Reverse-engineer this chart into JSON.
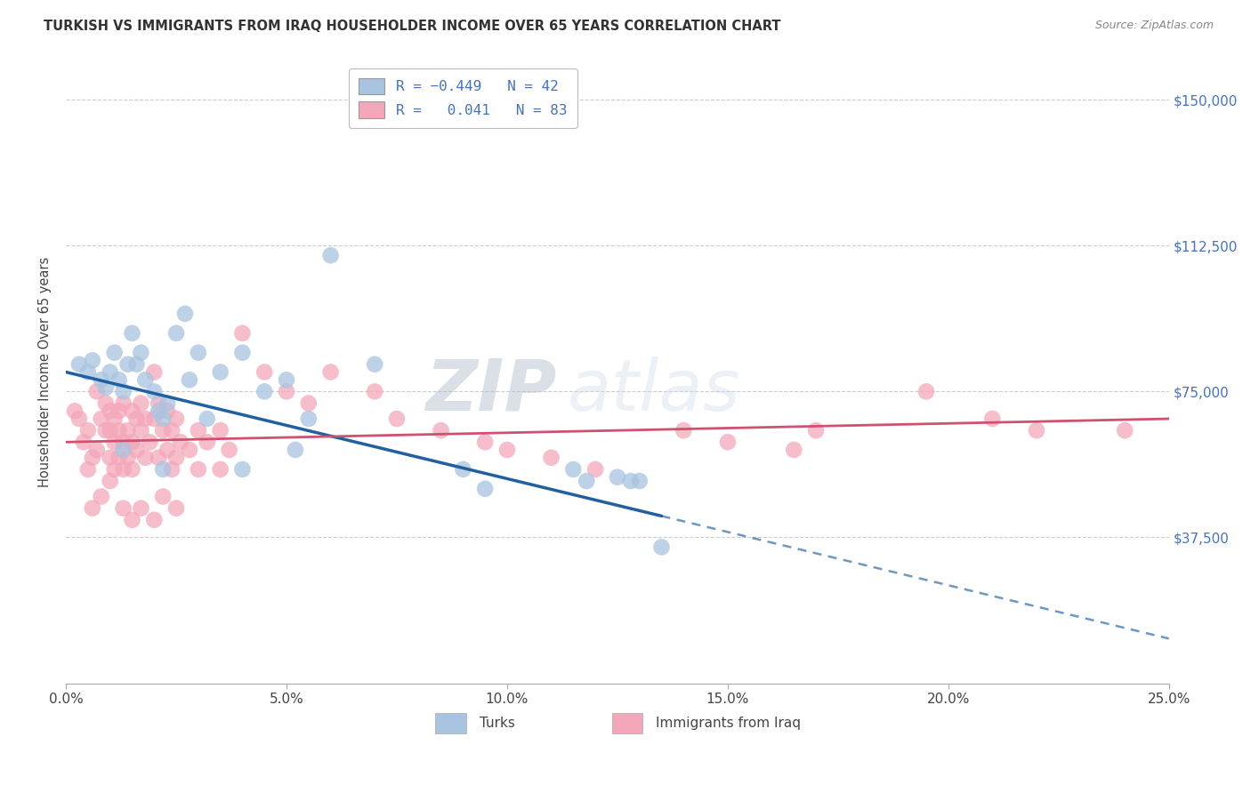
{
  "title": "TURKISH VS IMMIGRANTS FROM IRAQ HOUSEHOLDER INCOME OVER 65 YEARS CORRELATION CHART",
  "source": "Source: ZipAtlas.com",
  "ylabel": "Householder Income Over 65 years",
  "xlabel_ticks": [
    "0.0%",
    "5.0%",
    "10.0%",
    "15.0%",
    "20.0%",
    "25.0%"
  ],
  "xlabel_vals": [
    0.0,
    5.0,
    10.0,
    15.0,
    20.0,
    25.0
  ],
  "ytick_vals": [
    0,
    37500,
    75000,
    112500,
    150000
  ],
  "ytick_labels": [
    "",
    "$37,500",
    "$75,000",
    "$112,500",
    "$150,000"
  ],
  "xmin": 0.0,
  "xmax": 25.0,
  "ymin": 0,
  "ymax": 160000,
  "blue_R": -0.449,
  "blue_N": 42,
  "pink_R": 0.041,
  "pink_N": 83,
  "blue_color": "#a8c4e0",
  "pink_color": "#f4a7b9",
  "blue_line_color": "#2060a0",
  "pink_line_color": "#d05070",
  "legend_label1": "Turks",
  "legend_label2": "Immigrants from Iraq",
  "watermark_zip": "ZIP",
  "watermark_atlas": "atlas",
  "blue_solid_end": 13.5,
  "blue_x": [
    0.3,
    0.5,
    0.6,
    0.8,
    0.9,
    1.0,
    1.1,
    1.2,
    1.3,
    1.4,
    1.5,
    1.6,
    1.7,
    1.8,
    2.0,
    2.1,
    2.2,
    2.3,
    2.5,
    2.7,
    2.8,
    3.0,
    3.5,
    4.0,
    4.5,
    5.0,
    5.5,
    7.0,
    9.5,
    11.5,
    12.5,
    13.0,
    1.3,
    2.2,
    3.2,
    4.0,
    5.2,
    6.0,
    9.0,
    11.8,
    12.8,
    13.5
  ],
  "blue_y": [
    82000,
    80000,
    83000,
    78000,
    76000,
    80000,
    85000,
    78000,
    75000,
    82000,
    90000,
    82000,
    85000,
    78000,
    75000,
    70000,
    68000,
    72000,
    90000,
    95000,
    78000,
    85000,
    80000,
    85000,
    75000,
    78000,
    68000,
    82000,
    50000,
    55000,
    53000,
    52000,
    60000,
    55000,
    68000,
    55000,
    60000,
    110000,
    55000,
    52000,
    52000,
    35000
  ],
  "pink_x": [
    0.2,
    0.3,
    0.4,
    0.5,
    0.5,
    0.6,
    0.7,
    0.7,
    0.8,
    0.9,
    0.9,
    1.0,
    1.0,
    1.0,
    1.0,
    1.1,
    1.1,
    1.1,
    1.2,
    1.2,
    1.2,
    1.3,
    1.3,
    1.3,
    1.4,
    1.4,
    1.5,
    1.5,
    1.5,
    1.6,
    1.6,
    1.7,
    1.7,
    1.8,
    1.8,
    1.9,
    2.0,
    2.0,
    2.1,
    2.1,
    2.2,
    2.3,
    2.3,
    2.4,
    2.4,
    2.5,
    2.5,
    2.6,
    2.8,
    3.0,
    3.0,
    3.2,
    3.5,
    3.5,
    3.7,
    4.0,
    4.5,
    5.0,
    5.5,
    6.0,
    7.0,
    7.5,
    8.5,
    9.5,
    10.0,
    11.0,
    12.0,
    14.0,
    15.0,
    16.5,
    17.0,
    19.5,
    21.0,
    22.0,
    24.0,
    0.6,
    0.8,
    1.3,
    1.5,
    1.7,
    2.0,
    2.2,
    2.5
  ],
  "pink_y": [
    70000,
    68000,
    62000,
    65000,
    55000,
    58000,
    75000,
    60000,
    68000,
    65000,
    72000,
    70000,
    65000,
    58000,
    52000,
    68000,
    62000,
    55000,
    65000,
    70000,
    58000,
    62000,
    72000,
    55000,
    65000,
    58000,
    70000,
    62000,
    55000,
    68000,
    60000,
    72000,
    65000,
    58000,
    68000,
    62000,
    80000,
    68000,
    72000,
    58000,
    65000,
    70000,
    60000,
    55000,
    65000,
    58000,
    68000,
    62000,
    60000,
    55000,
    65000,
    62000,
    55000,
    65000,
    60000,
    90000,
    80000,
    75000,
    72000,
    80000,
    75000,
    68000,
    65000,
    62000,
    60000,
    58000,
    55000,
    65000,
    62000,
    60000,
    65000,
    75000,
    68000,
    65000,
    65000,
    45000,
    48000,
    45000,
    42000,
    45000,
    42000,
    48000,
    45000
  ]
}
